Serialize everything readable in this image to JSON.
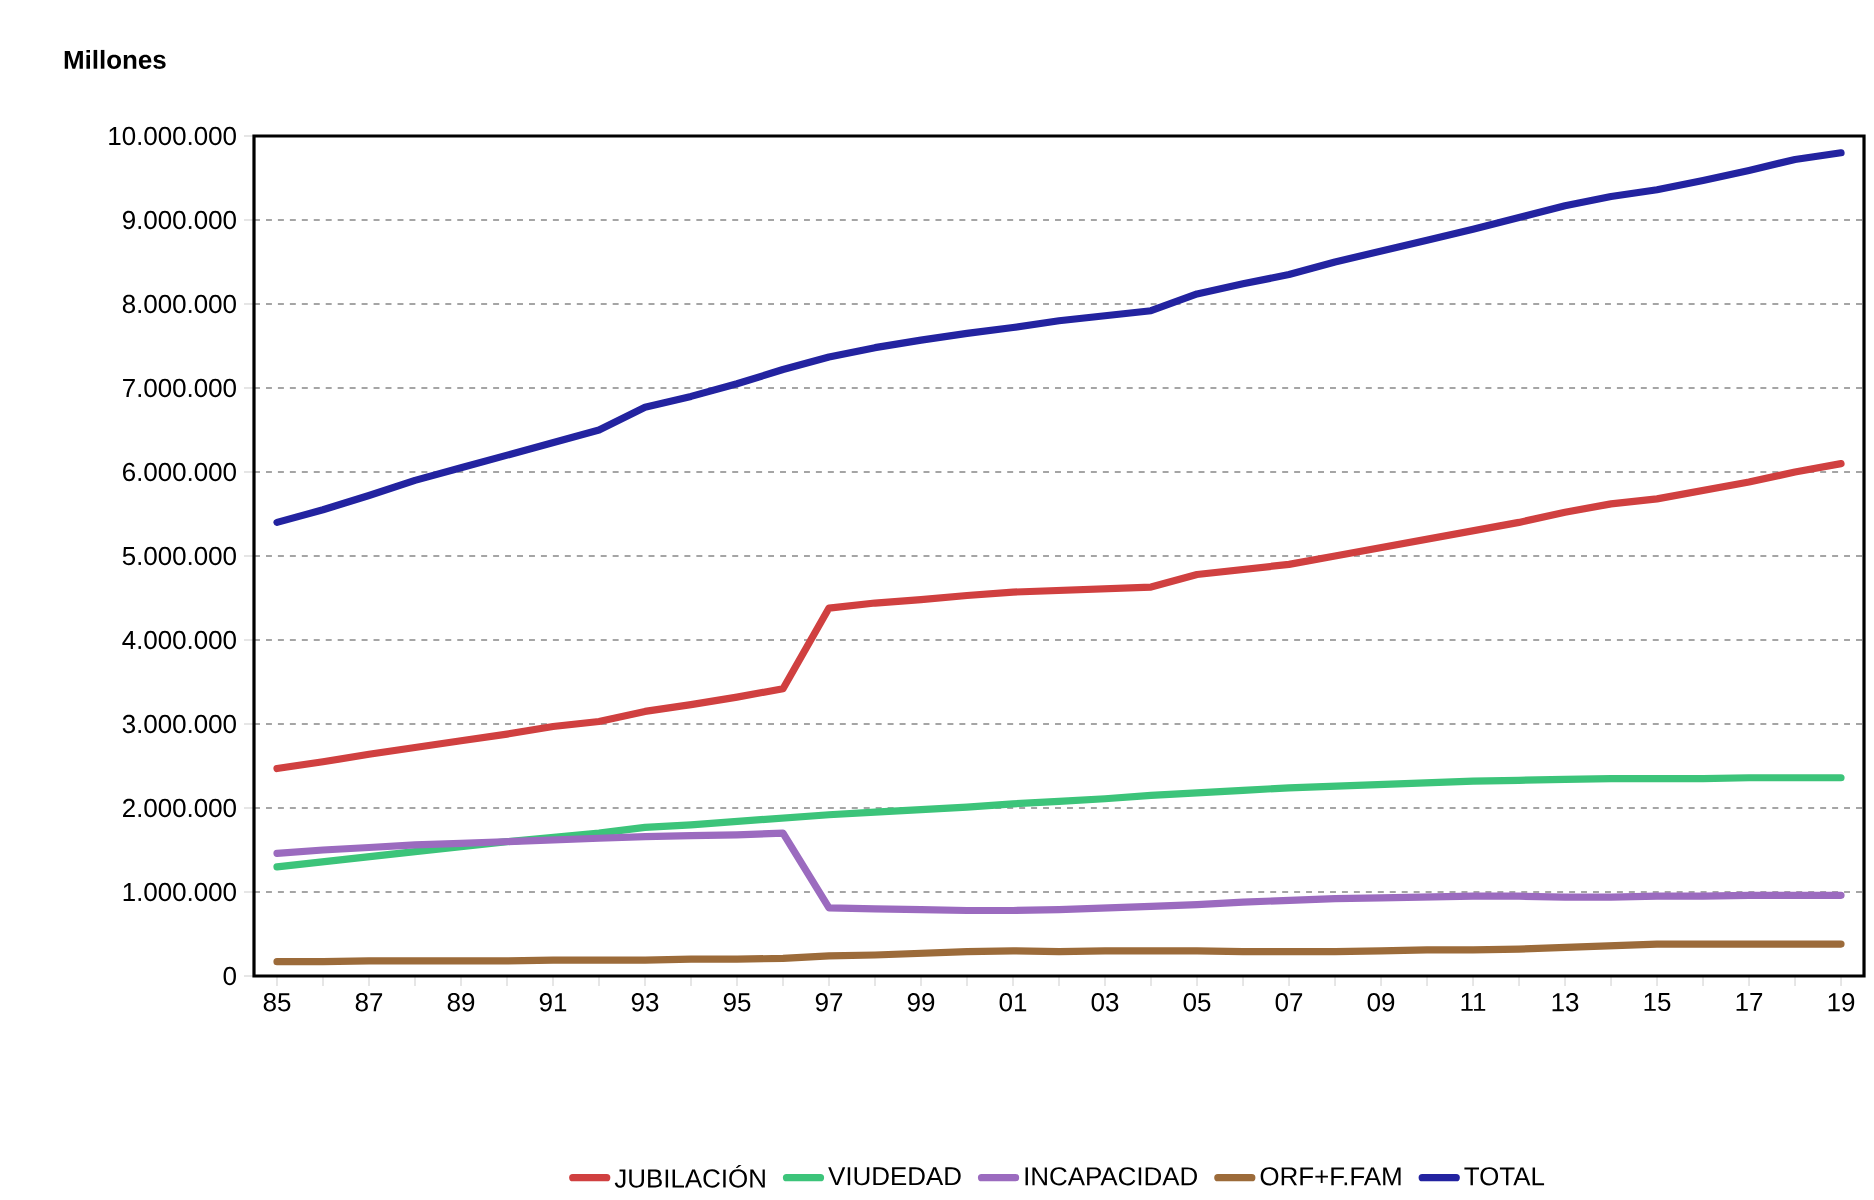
{
  "chart_data": {
    "type": "line",
    "ylabel": "Millones",
    "x": [
      1985,
      1986,
      1987,
      1988,
      1989,
      1990,
      1991,
      1992,
      1993,
      1994,
      1995,
      1996,
      1997,
      1998,
      1999,
      2000,
      2001,
      2002,
      2003,
      2004,
      2005,
      2006,
      2007,
      2008,
      2009,
      2010,
      2011,
      2012,
      2013,
      2014,
      2015,
      2016,
      2017,
      2018,
      2019
    ],
    "series": [
      {
        "name": "JUBILACIÓN",
        "color": "#d04040",
        "values": [
          2470000,
          2550000,
          2640000,
          2720000,
          2800000,
          2880000,
          2970000,
          3030000,
          3150000,
          3230000,
          3320000,
          3420000,
          4380000,
          4440000,
          4480000,
          4530000,
          4570000,
          4590000,
          4610000,
          4630000,
          4780000,
          4840000,
          4900000,
          5000000,
          5100000,
          5200000,
          5300000,
          5400000,
          5520000,
          5620000,
          5680000,
          5780000,
          5880000,
          6000000,
          6100000
        ]
      },
      {
        "name": "VIUDEDAD",
        "color": "#3cc47a",
        "values": [
          1300000,
          1360000,
          1420000,
          1480000,
          1540000,
          1600000,
          1650000,
          1700000,
          1770000,
          1800000,
          1840000,
          1880000,
          1920000,
          1950000,
          1980000,
          2010000,
          2050000,
          2080000,
          2110000,
          2150000,
          2180000,
          2210000,
          2240000,
          2260000,
          2280000,
          2300000,
          2320000,
          2330000,
          2340000,
          2350000,
          2350000,
          2350000,
          2360000,
          2360000,
          2360000
        ]
      },
      {
        "name": "INCAPACIDAD",
        "color": "#9b6bbf",
        "values": [
          1460000,
          1500000,
          1530000,
          1560000,
          1580000,
          1600000,
          1620000,
          1640000,
          1660000,
          1670000,
          1680000,
          1700000,
          810000,
          800000,
          790000,
          780000,
          780000,
          790000,
          810000,
          830000,
          850000,
          880000,
          900000,
          920000,
          930000,
          940000,
          950000,
          950000,
          940000,
          940000,
          950000,
          950000,
          960000,
          960000,
          960000
        ]
      },
      {
        "name": "ORF+F.FAM",
        "color": "#9c6b3a",
        "values": [
          170000,
          170000,
          180000,
          180000,
          180000,
          180000,
          190000,
          190000,
          190000,
          200000,
          200000,
          210000,
          240000,
          250000,
          270000,
          290000,
          300000,
          290000,
          300000,
          300000,
          300000,
          290000,
          290000,
          290000,
          300000,
          310000,
          310000,
          320000,
          340000,
          360000,
          380000,
          380000,
          380000,
          380000,
          380000
        ]
      },
      {
        "name": "TOTAL",
        "color": "#2323a0",
        "values": [
          5400000,
          5550000,
          5720000,
          5900000,
          6050000,
          6200000,
          6350000,
          6500000,
          6770000,
          6900000,
          7050000,
          7220000,
          7370000,
          7480000,
          7570000,
          7650000,
          7720000,
          7800000,
          7860000,
          7920000,
          8120000,
          8240000,
          8350000,
          8500000,
          8630000,
          8760000,
          8890000,
          9030000,
          9170000,
          9280000,
          9360000,
          9470000,
          9590000,
          9720000,
          9800000
        ]
      }
    ],
    "xlim": [
      1984.5,
      2019.5
    ],
    "xticks": [
      {
        "value": 1985,
        "label": "85"
      },
      {
        "value": 1986,
        "label": null
      },
      {
        "value": 1987,
        "label": "87"
      },
      {
        "value": 1988,
        "label": null
      },
      {
        "value": 1989,
        "label": "89"
      },
      {
        "value": 1990,
        "label": null
      },
      {
        "value": 1991,
        "label": "91"
      },
      {
        "value": 1992,
        "label": null
      },
      {
        "value": 1993,
        "label": "93"
      },
      {
        "value": 1994,
        "label": null
      },
      {
        "value": 1995,
        "label": "95"
      },
      {
        "value": 1996,
        "label": null
      },
      {
        "value": 1997,
        "label": "97"
      },
      {
        "value": 1998,
        "label": null
      },
      {
        "value": 1999,
        "label": "99"
      },
      {
        "value": 2000,
        "label": null
      },
      {
        "value": 2001,
        "label": "01"
      },
      {
        "value": 2002,
        "label": null
      },
      {
        "value": 2003,
        "label": "03"
      },
      {
        "value": 2004,
        "label": null
      },
      {
        "value": 2005,
        "label": "05"
      },
      {
        "value": 2006,
        "label": null
      },
      {
        "value": 2007,
        "label": "07"
      },
      {
        "value": 2008,
        "label": null
      },
      {
        "value": 2009,
        "label": "09"
      },
      {
        "value": 2010,
        "label": null
      },
      {
        "value": 2011,
        "label": "11"
      },
      {
        "value": 2012,
        "label": null
      },
      {
        "value": 2013,
        "label": "13"
      },
      {
        "value": 2014,
        "label": null
      },
      {
        "value": 2015,
        "label": "15"
      },
      {
        "value": 2016,
        "label": null
      },
      {
        "value": 2017,
        "label": "17"
      },
      {
        "value": 2018,
        "label": null
      },
      {
        "value": 2019,
        "label": "19"
      }
    ],
    "ylim": [
      0,
      10000000
    ],
    "yticks": [
      0,
      {
        "value": 1000000,
        "label": "1.000.000"
      },
      {
        "value": 2000000,
        "label": "2.000.000"
      },
      {
        "value": 3000000,
        "label": "3.000.000"
      },
      {
        "value": 4000000,
        "label": "4.000.000"
      },
      {
        "value": 5000000,
        "label": "5.000.000"
      },
      {
        "value": 6000000,
        "label": "6.000.000"
      },
      {
        "value": 7000000,
        "label": "7.000.000"
      },
      {
        "value": 8000000,
        "label": "8.000.000"
      },
      {
        "value": 9000000,
        "label": "9.000.000"
      },
      {
        "value": 10000000,
        "label": "10.000.000"
      }
    ],
    "grid": "y",
    "legend": "bottom"
  }
}
